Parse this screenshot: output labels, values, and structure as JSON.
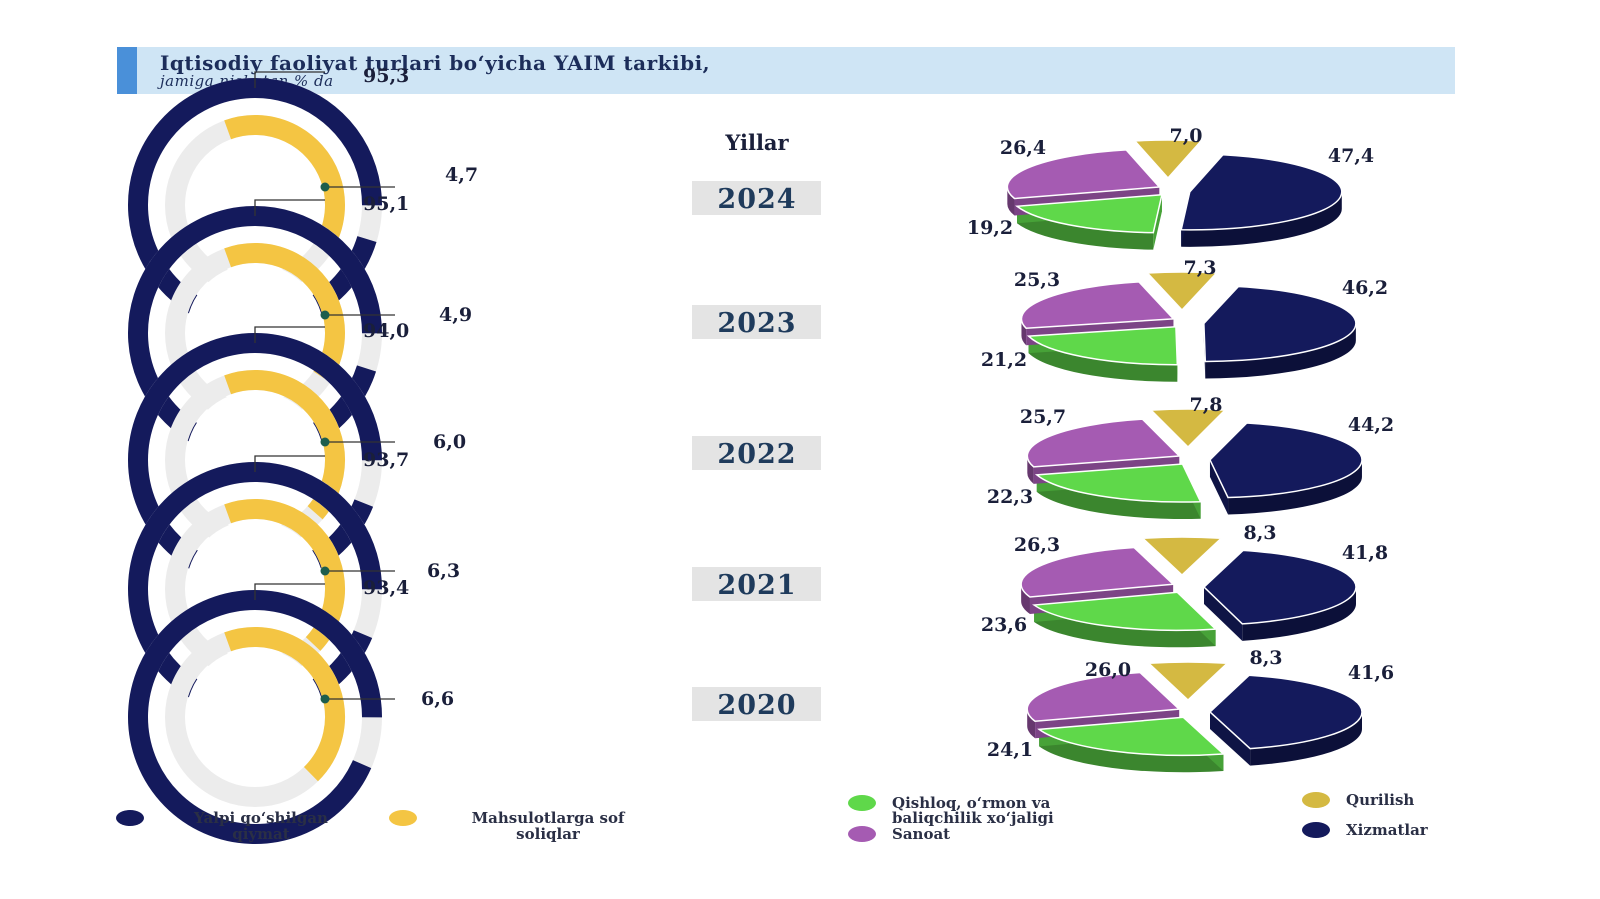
{
  "header": {
    "title": "Iqtisodiy faoliyat turlari bo‘yicha YAIM tarkibi,",
    "subtitle": "jamiga nisbatan % da"
  },
  "chart_data": [
    {
      "type": "donut",
      "series": [
        {
          "name": "Yalpi qo‘shilgan qiymat",
          "color": "#141a5c",
          "values": [
            95.3,
            95.1,
            94.0,
            93.7,
            93.4
          ]
        },
        {
          "name": "Mahsulotlarga sof soliqlar",
          "color": "#f4c543",
          "values": [
            4.7,
            4.9,
            6.0,
            6.3,
            6.6
          ]
        }
      ],
      "categories": [
        "2024",
        "2023",
        "2022",
        "2021",
        "2020"
      ],
      "labels": {
        "outer": [
          "95,3",
          "95,1",
          "94,0",
          "93,7",
          "93,4"
        ],
        "inner": [
          "4,7",
          "4,9",
          "6,0",
          "6,3",
          "6,6"
        ]
      }
    },
    {
      "type": "pie",
      "categories_title": "Yillar",
      "categories": [
        "2024",
        "2023",
        "2022",
        "2021",
        "2020"
      ],
      "series": [
        {
          "name": "Qishloq, o‘rmon va baliqchilik xo‘jaligi",
          "color": "#5fd84a",
          "values": [
            19.2,
            21.2,
            22.3,
            23.6,
            24.1
          ],
          "labels": [
            "19,2",
            "21,2",
            "22,3",
            "23,6",
            "24,1"
          ]
        },
        {
          "name": "Sanoat",
          "color": "#a55bb2",
          "values": [
            26.4,
            25.3,
            25.7,
            26.3,
            26.0
          ],
          "labels": [
            "26,4",
            "25,3",
            "25,7",
            "26,3",
            "26,0"
          ]
        },
        {
          "name": "Qurilish",
          "color": "#d4b942",
          "values": [
            7.0,
            7.3,
            7.8,
            8.3,
            8.3
          ],
          "labels": [
            "7,0",
            "7,3",
            "7,8",
            "8,3",
            "8,3"
          ]
        },
        {
          "name": "Xizmatlar",
          "color": "#141a5c",
          "values": [
            47.4,
            46.2,
            44.2,
            41.8,
            41.6
          ],
          "labels": [
            "47,4",
            "46,2",
            "44,2",
            "41,8",
            "41,6"
          ]
        }
      ]
    }
  ],
  "legend": {
    "left": [
      {
        "label_lines": [
          "Yalpi qo‘shilgan",
          "qiymat"
        ],
        "color": "#141a5c"
      },
      {
        "label_lines": [
          "Mahsulotlarga sof",
          "soliqlar"
        ],
        "color": "#f4c543"
      }
    ],
    "right": [
      {
        "label_lines": [
          "Qishloq, o‘rmon  va",
          "baliqchilik xo‘jaligi"
        ],
        "color": "#5fd84a"
      },
      {
        "label_lines": [
          "Sanoat"
        ],
        "color": "#a55bb2"
      },
      {
        "label_lines": [
          "Qurilish"
        ],
        "color": "#d4b942"
      },
      {
        "label_lines": [
          "Xizmatlar"
        ],
        "color": "#141a5c"
      }
    ]
  }
}
